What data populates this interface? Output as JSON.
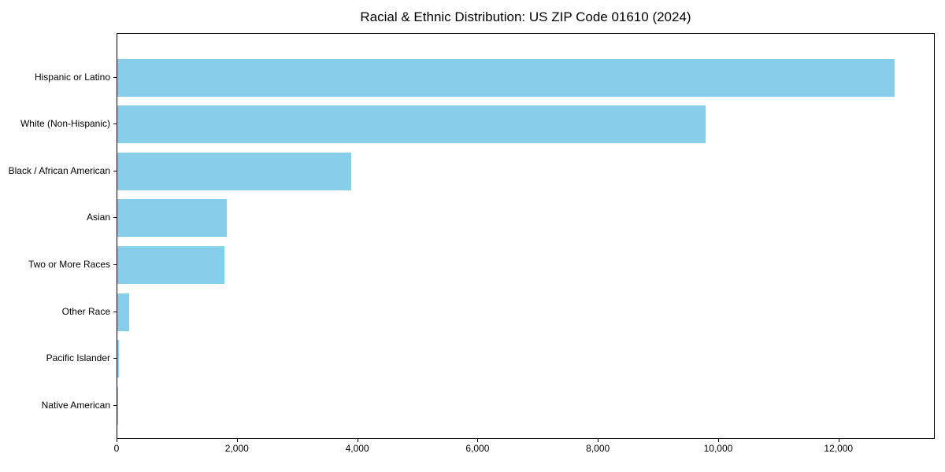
{
  "title": "Racial & Ethnic Distribution: US ZIP Code 01610 (2024)",
  "chart_data": {
    "type": "bar",
    "orientation": "horizontal",
    "title": "Racial & Ethnic Distribution: US ZIP Code 01610 (2024)",
    "xlabel": "",
    "ylabel": "",
    "categories": [
      "Hispanic or Latino",
      "White (Non-Hispanic)",
      "Black / African American",
      "Asian",
      "Two or More Races",
      "Other Race",
      "Pacific Islander",
      "Native American"
    ],
    "values": [
      12950,
      9800,
      3900,
      1820,
      1780,
      200,
      20,
      10
    ],
    "xticks": [
      0,
      2000,
      4000,
      6000,
      8000,
      10000,
      12000
    ],
    "xtick_labels": [
      "0",
      "2,000",
      "4,000",
      "6,000",
      "8,000",
      "10,000",
      "12,000"
    ],
    "xlim": [
      0,
      13600
    ],
    "grid": false,
    "legend": false,
    "bar_color": "#87CEEB",
    "background_color": "#ffffff",
    "text_color": "#000000"
  }
}
